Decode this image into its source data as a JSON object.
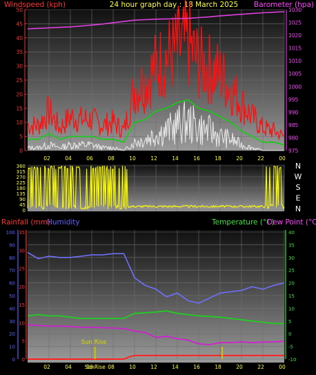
{
  "header": {
    "left_title": "Windspeed (kph)",
    "center_title": "24 hour graph day : 18 March 2025",
    "right_title": "Barometer (hpa)"
  },
  "colors": {
    "wind_gust": "#ff1010",
    "wind_avg": "#10d010",
    "wind_min": "#e8e8e8",
    "pressure": "#e040e0",
    "direction": "#ffff00",
    "humidity": "#7070ff",
    "temperature": "#20d020",
    "dewpoint": "#d020d0",
    "rain": "#ff2020",
    "panel_grid": "#707070",
    "axis_left_red": "#ff3030",
    "axis_right_magenta": "#ff40ff",
    "axis_green": "#40e040",
    "axis_blue": "#6060ff"
  },
  "chart_data": [
    {
      "type": "line",
      "name": "wind-baro",
      "y_axis_left": {
        "label": "Windspeed (kph)",
        "min": 0,
        "max": 50,
        "ticks": [
          0,
          5,
          10,
          15,
          20,
          25,
          30,
          35,
          40,
          45,
          50
        ]
      },
      "y_axis_right": {
        "label": "Barometer (hpa)",
        "min": 975,
        "max": 1030,
        "ticks": [
          975,
          980,
          985,
          990,
          995,
          1000,
          1005,
          1010,
          1015,
          1020,
          1025,
          1030
        ]
      },
      "x_ticks": [
        "02",
        "04",
        "06",
        "08",
        "10",
        "12",
        "14",
        "16",
        "18",
        "20",
        "22",
        "00"
      ],
      "grid": true,
      "pressure": {
        "x": [
          0,
          1,
          2,
          3,
          4,
          5,
          6,
          7,
          8,
          9,
          10,
          11,
          12,
          13,
          14,
          15,
          16,
          17,
          18,
          19,
          20,
          21,
          22,
          23,
          24
        ],
        "y": [
          1022.5,
          1022.7,
          1022.9,
          1023.1,
          1023.3,
          1023.6,
          1024.0,
          1024.4,
          1024.9,
          1025.4,
          1025.9,
          1026.1,
          1026.3,
          1026.4,
          1026.5,
          1026.6,
          1026.9,
          1027.2,
          1027.6,
          1027.9,
          1028.2,
          1028.5,
          1028.8,
          1029.0,
          1029.2
        ]
      },
      "wind_gust": {
        "x": [
          0,
          1,
          2,
          3,
          4,
          5,
          6,
          7,
          8,
          9,
          10,
          11,
          12,
          13,
          14,
          15,
          16,
          17,
          18,
          19,
          20,
          21,
          22,
          23,
          24
        ],
        "y": [
          9,
          9,
          14,
          8,
          12,
          11,
          11,
          9,
          10,
          7,
          22,
          24,
          30,
          33,
          36,
          38,
          31,
          29,
          27,
          22,
          17,
          12,
          8,
          7,
          5
        ]
      },
      "wind_avg": {
        "x": [
          0,
          1,
          2,
          3,
          4,
          5,
          6,
          7,
          8,
          9,
          10,
          11,
          12,
          13,
          14,
          15,
          16,
          17,
          18,
          19,
          20,
          21,
          22,
          23,
          24
        ],
        "y": [
          4,
          4,
          6,
          4,
          5,
          5,
          5,
          4,
          4,
          3,
          10,
          11,
          14,
          15,
          17,
          18,
          15,
          14,
          12,
          10,
          7,
          5,
          3,
          3,
          2
        ]
      },
      "wind_min": {
        "x": [
          0,
          1,
          2,
          3,
          4,
          5,
          6,
          7,
          8,
          9,
          10,
          11,
          12,
          13,
          14,
          15,
          16,
          17,
          18,
          19,
          20,
          21,
          22,
          23,
          24
        ],
        "y": [
          1,
          1,
          2,
          1,
          2,
          2,
          2,
          1,
          1,
          0,
          3,
          4,
          6,
          7,
          9,
          10,
          8,
          7,
          5,
          4,
          2,
          1,
          0,
          0,
          0
        ]
      }
    },
    {
      "type": "line",
      "name": "wind-direction",
      "y_axis_left": {
        "min": 0,
        "max": 360,
        "ticks": [
          0,
          45,
          90,
          135,
          180,
          225,
          270,
          315,
          360
        ]
      },
      "y_axis_right_labels": [
        "N",
        "W",
        "S",
        "E",
        "N"
      ],
      "x_ticks": [
        "02",
        "04",
        "06",
        "08",
        "10",
        "12",
        "14",
        "16",
        "18",
        "20",
        "22",
        "00"
      ],
      "grid": true,
      "direction": {
        "x": [
          0,
          0.5,
          1,
          1.5,
          2,
          2.5,
          3,
          3.5,
          4,
          4.5,
          5,
          5.5,
          6,
          6.5,
          7,
          7.5,
          8,
          8.5,
          9,
          9.5,
          10,
          11,
          12,
          13,
          14,
          15,
          16,
          17,
          18,
          19,
          20,
          21,
          22,
          22.5,
          23,
          23.5,
          24
        ],
        "y": [
          20,
          350,
          30,
          340,
          20,
          340,
          30,
          350,
          20,
          345,
          25,
          355,
          30,
          340,
          20,
          350,
          25,
          340,
          20,
          345,
          30,
          30,
          35,
          30,
          25,
          30,
          30,
          25,
          30,
          25,
          30,
          25,
          20,
          350,
          30,
          340,
          20
        ]
      }
    },
    {
      "type": "line",
      "name": "rain-humidity-temp",
      "y_axis_outer_left": {
        "label": "Humidity",
        "min": 0,
        "max": 100,
        "ticks": [
          0,
          10,
          20,
          30,
          40,
          50,
          60,
          70,
          80,
          90,
          100
        ]
      },
      "y_axis_inner_left": {
        "label": "Rainfall (mm)",
        "min": 0,
        "max": 35,
        "ticks": [
          0,
          5,
          10,
          15,
          20,
          25,
          30,
          35
        ]
      },
      "y_axis_right": {
        "label_temperature": "Temperature (°C)",
        "label_dewpoint": "Dew Point (°C)",
        "min": -10,
        "max": 40,
        "ticks": [
          -10,
          -5,
          0,
          5,
          10,
          15,
          20,
          25,
          30,
          35,
          40
        ]
      },
      "x_ticks": [
        "02",
        "04",
        "06",
        "08",
        "10",
        "12",
        "14",
        "16",
        "18",
        "20",
        "22",
        "00"
      ],
      "grid": true,
      "annotations": {
        "sunrise_text": "Sun Rise",
        "sunrise_axis_text": "SunRise",
        "sunrise_hour": 6.3,
        "sunset_hour": 18.2
      },
      "humidity": {
        "x": [
          0,
          1,
          2,
          3,
          4,
          5,
          6,
          7,
          8,
          9,
          10,
          11,
          12,
          13,
          14,
          15,
          16,
          17,
          18,
          19,
          20,
          21,
          22,
          23,
          24
        ],
        "y": [
          84,
          79,
          81,
          80,
          80,
          81,
          82,
          82,
          83,
          83,
          64,
          58,
          55,
          49,
          52,
          46,
          44,
          48,
          52,
          53,
          54,
          57,
          55,
          58,
          60
        ]
      },
      "temperature": {
        "x": [
          0,
          1,
          2,
          3,
          4,
          5,
          6,
          7,
          8,
          9,
          10,
          11,
          12,
          13,
          14,
          15,
          16,
          17,
          18,
          19,
          20,
          21,
          22,
          23,
          24
        ],
        "y": [
          7,
          7.5,
          7,
          7,
          6.5,
          6,
          6,
          6,
          6,
          6,
          8,
          8.2,
          8.5,
          9,
          8,
          7.5,
          7,
          6.8,
          6.5,
          6,
          5.5,
          5,
          4.5,
          4,
          4
        ]
      },
      "dewpoint": {
        "x": [
          0,
          1,
          2,
          3,
          4,
          5,
          6,
          7,
          8,
          9,
          10,
          11,
          12,
          13,
          14,
          15,
          16,
          17,
          18,
          19,
          20,
          21,
          22,
          23,
          24
        ],
        "y": [
          3.5,
          3.2,
          3.0,
          3.0,
          2.8,
          2.5,
          2.5,
          2.4,
          2.2,
          2.0,
          1.0,
          0.5,
          -1.5,
          -1.0,
          -2.0,
          -2.5,
          -4.0,
          -4.3,
          -3.5,
          -3.5,
          -3.2,
          -3.5,
          -3.3,
          -3.2,
          -3.0
        ]
      },
      "rain": {
        "x": [
          0,
          9,
          9.5,
          10,
          24
        ],
        "y": [
          0,
          0,
          0.6,
          1.0,
          1.0
        ]
      }
    }
  ],
  "panel3_labels": {
    "rain_label": "Rainfall (mm)",
    "humidity_label": "Humidity",
    "temp_label": "Temperature (°C)",
    "dew_label": "Dew Point (°C)"
  }
}
